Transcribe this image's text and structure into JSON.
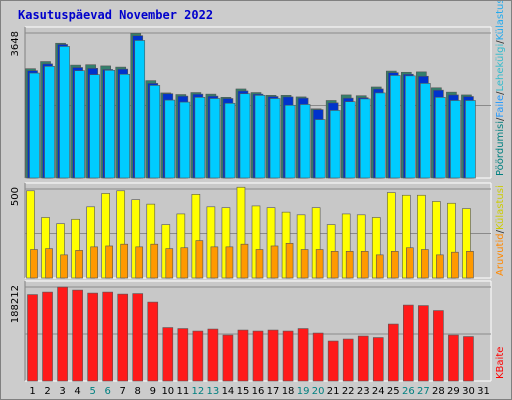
{
  "title": "Kasutuspäevad November 2022",
  "chart_data": [
    {
      "type": "bar",
      "panel": "top",
      "y_tick_labels": [
        "3648"
      ],
      "ylim": [
        0,
        3648
      ],
      "legend_labels": [
        {
          "text": "Pöördumisi",
          "color": "#008080"
        },
        {
          "text": "/",
          "color": "#333333"
        },
        {
          "text": "Faile",
          "color": "#2299ff"
        },
        {
          "text": "/",
          "color": "#333333"
        },
        {
          "text": "Lehekülgi",
          "color": "#33bbcc"
        },
        {
          "text": "/",
          "color": "#333333"
        },
        {
          "text": "Külastusi",
          "color": "#22aaee"
        }
      ],
      "series": [
        {
          "name": "Pöördumisi",
          "color": "#33806c",
          "values": [
            2750,
            2930,
            3390,
            2840,
            2850,
            2820,
            2790,
            3640,
            2450,
            2140,
            2100,
            2150,
            2110,
            2030,
            2240,
            2150,
            2080,
            2080,
            2040,
            1740,
            1950,
            2090,
            2070,
            2290,
            2690,
            2660,
            2670,
            2270,
            2160,
            2090
          ]
        },
        {
          "name": "Faile",
          "color": "#0033cc",
          "values": [
            2700,
            2870,
            3360,
            2780,
            2760,
            2730,
            2740,
            3580,
            2380,
            2120,
            2060,
            2110,
            2060,
            2000,
            2190,
            2110,
            2050,
            2040,
            2010,
            1720,
            1890,
            2010,
            2020,
            2240,
            2650,
            2610,
            2560,
            2210,
            2090,
            2050
          ]
        },
        {
          "name": "Külastusi",
          "color": "#00ccff",
          "values": [
            2640,
            2810,
            3310,
            2700,
            2600,
            2710,
            2610,
            3460,
            2330,
            1960,
            1910,
            2030,
            2000,
            1880,
            2120,
            2080,
            2000,
            1830,
            1850,
            1470,
            1700,
            1920,
            1990,
            2140,
            2580,
            2570,
            2380,
            2030,
            1950,
            1950
          ]
        }
      ]
    },
    {
      "type": "bar",
      "panel": "middle",
      "y_tick_labels": [
        "500"
      ],
      "ylim": [
        0,
        500
      ],
      "legend_labels": [
        {
          "text": "Aruvutid",
          "color": "#ff8800"
        },
        {
          "text": "/",
          "color": "#333333"
        },
        {
          "text": "Külastusi",
          "color": "#cccc00"
        }
      ],
      "series": [
        {
          "name": "Külastusi",
          "color": "#ffff00",
          "values": [
            490,
            340,
            305,
            330,
            400,
            475,
            490,
            440,
            415,
            300,
            360,
            470,
            400,
            395,
            510,
            405,
            395,
            370,
            355,
            395,
            300,
            360,
            355,
            340,
            480,
            465,
            465,
            430,
            420,
            390
          ]
        },
        {
          "name": "Aruvutid",
          "color": "#ff9900",
          "values": [
            160,
            165,
            130,
            155,
            175,
            180,
            190,
            175,
            190,
            165,
            170,
            210,
            175,
            175,
            190,
            160,
            180,
            195,
            160,
            160,
            150,
            150,
            150,
            130,
            150,
            170,
            160,
            130,
            145,
            150
          ]
        }
      ]
    },
    {
      "type": "bar",
      "panel": "bottom",
      "y_tick_labels": [
        "188212"
      ],
      "ylim": [
        0,
        188212
      ],
      "legend_labels": [
        {
          "text": "KBaite",
          "color": "#ff0000"
        }
      ],
      "series": [
        {
          "name": "KBaite",
          "color": "#ff1a1a",
          "values": [
            173000,
            178000,
            188000,
            182000,
            176000,
            178000,
            174000,
            175000,
            158000,
            107000,
            105000,
            100000,
            104000,
            92000,
            102000,
            100000,
            102000,
            100000,
            105000,
            96000,
            80000,
            84000,
            90000,
            87000,
            114000,
            152000,
            151000,
            141000,
            92000,
            89000
          ]
        }
      ]
    }
  ],
  "x_tick_labels": [
    "1",
    "2",
    "3",
    "4",
    "5",
    "6",
    "7",
    "8",
    "9",
    "10",
    "11",
    "12",
    "13",
    "14",
    "15",
    "16",
    "17",
    "18",
    "19",
    "20",
    "21",
    "22",
    "23",
    "24",
    "25",
    "26",
    "27",
    "28",
    "29",
    "30",
    "31"
  ],
  "x_tick_colors": [
    "#000000",
    "#000000",
    "#000000",
    "#000000",
    "#008080",
    "#008080",
    "#000000",
    "#000000",
    "#000000",
    "#000000",
    "#000000",
    "#008080",
    "#008080",
    "#000000",
    "#000000",
    "#000000",
    "#000000",
    "#000000",
    "#008080",
    "#008080",
    "#000000",
    "#000000",
    "#000000",
    "#000000",
    "#000000",
    "#008080",
    "#008080",
    "#000000",
    "#000000",
    "#000000",
    "#000000"
  ]
}
